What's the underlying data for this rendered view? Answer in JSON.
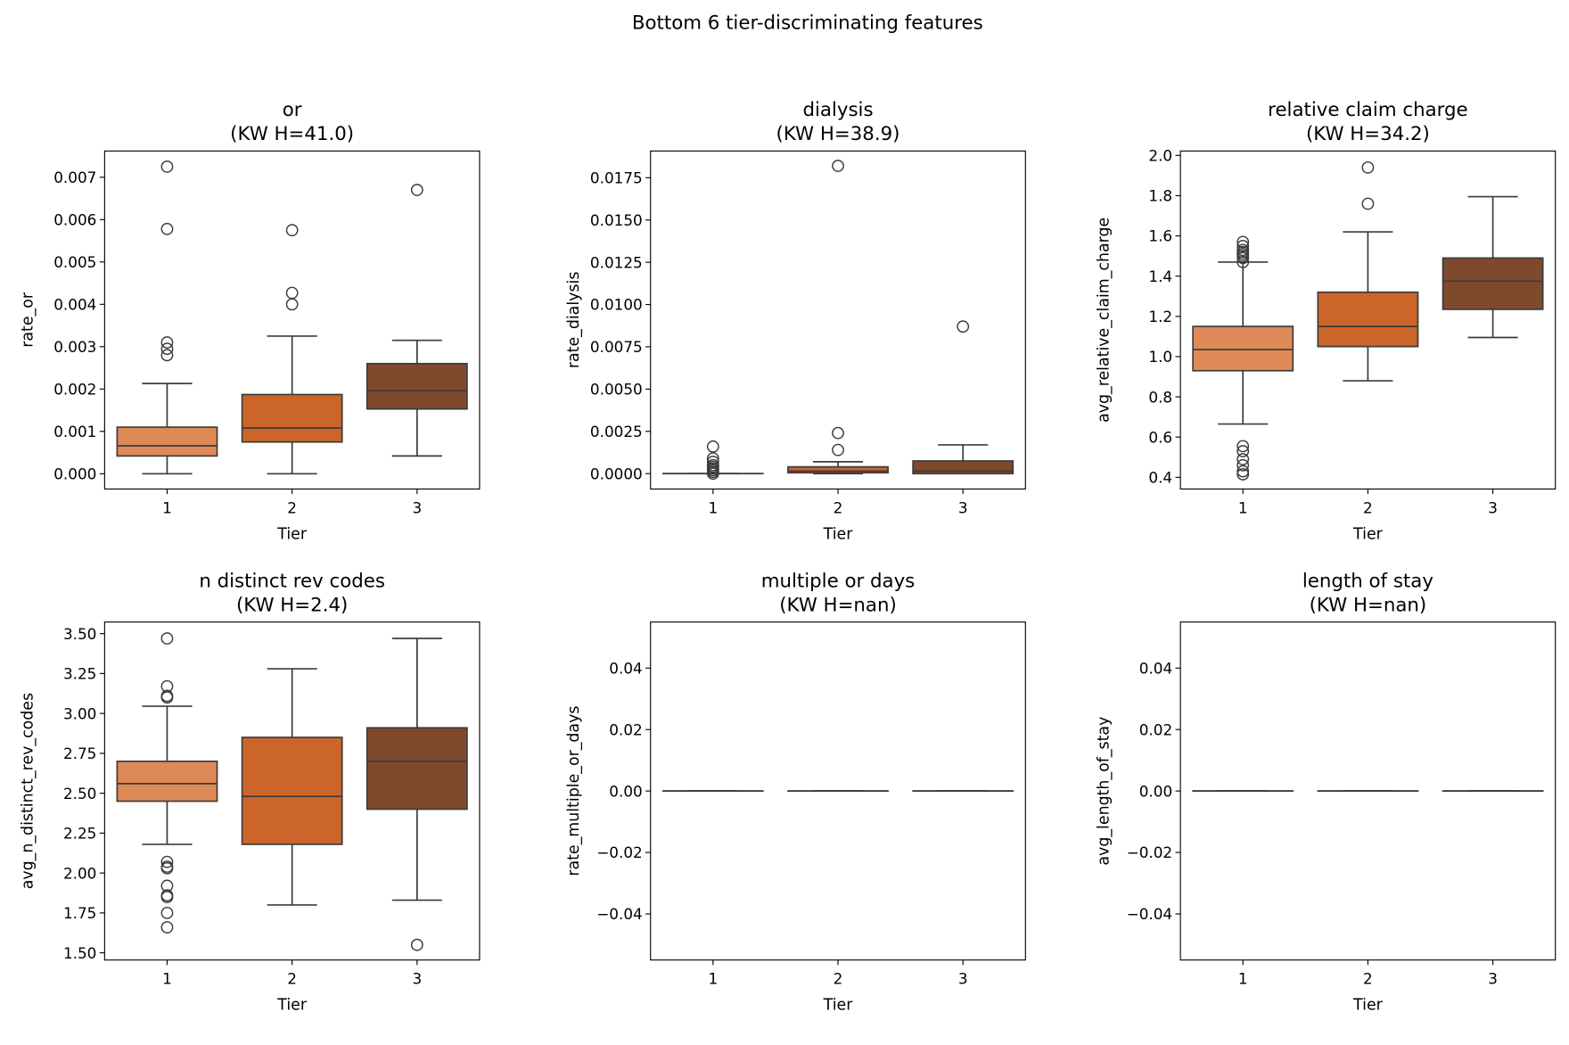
{
  "chart_data": {
    "suptitle": "Bottom 6 tier-discriminating features",
    "tier_colors": [
      "#dd8a58",
      "#cb652a",
      "#7f4a2c"
    ],
    "panels": [
      {
        "type": "box",
        "title": "or",
        "subtitle": "(KW H=41.0)",
        "xlabel": "Tier",
        "ylabel": "rate_or",
        "categories": [
          "1",
          "2",
          "3"
        ],
        "ylim": [
          -0.00036,
          0.00762
        ],
        "yticks": [
          0,
          0.001,
          0.002,
          0.003,
          0.004,
          0.005,
          0.006,
          0.007
        ],
        "ytick_labels": [
          "0.000",
          "0.001",
          "0.002",
          "0.003",
          "0.004",
          "0.005",
          "0.006",
          "0.007"
        ],
        "boxes": [
          {
            "whislo": 0,
            "q1": 0.00042,
            "med": 0.00066,
            "q3": 0.0011,
            "whishi": 0.00213,
            "fliers": [
              0.00725,
              0.00578,
              0.0031,
              0.00295,
              0.0028
            ]
          },
          {
            "whislo": 0,
            "q1": 0.00075,
            "med": 0.00108,
            "q3": 0.00187,
            "whishi": 0.00325,
            "fliers": [
              0.00575,
              0.00427,
              0.004
            ]
          },
          {
            "whislo": 0.00042,
            "q1": 0.00153,
            "med": 0.00196,
            "q3": 0.0026,
            "whishi": 0.00315,
            "fliers": [
              0.0067
            ]
          }
        ]
      },
      {
        "type": "box",
        "title": "dialysis",
        "subtitle": "(KW H=38.9)",
        "xlabel": "Tier",
        "ylabel": "rate_dialysis",
        "categories": [
          "1",
          "2",
          "3"
        ],
        "ylim": [
          -0.00091,
          0.01908
        ],
        "yticks": [
          0,
          0.0025,
          0.005,
          0.0075,
          0.01,
          0.0125,
          0.015,
          0.0175
        ],
        "ytick_labels": [
          "0.0000",
          "0.0025",
          "0.0050",
          "0.0075",
          "0.0100",
          "0.0125",
          "0.0150",
          "0.0175"
        ],
        "boxes": [
          {
            "whislo": 0,
            "q1": 0,
            "med": 0,
            "q3": 0,
            "whishi": 0,
            "fliers": [
              0.0016,
              0.0009,
              0.0007,
              0.0005,
              0.0004,
              0.0003,
              0.0002,
              0.0001,
              0
            ]
          },
          {
            "whislo": 0,
            "q1": 5e-05,
            "med": 0.00015,
            "q3": 0.0004,
            "whishi": 0.0007,
            "fliers": [
              0.0182,
              0.0024,
              0.0014
            ]
          },
          {
            "whislo": 0,
            "q1": 0,
            "med": 0.00015,
            "q3": 0.00075,
            "whishi": 0.0017,
            "fliers": [
              0.0087
            ]
          }
        ]
      },
      {
        "type": "box",
        "title": "relative claim charge",
        "subtitle": "(KW H=34.2)",
        "xlabel": "Tier",
        "ylabel": "avg_relative_claim_charge",
        "categories": [
          "1",
          "2",
          "3"
        ],
        "ylim": [
          0.342,
          2.022
        ],
        "yticks": [
          0.4,
          0.6,
          0.8,
          1.0,
          1.2,
          1.4,
          1.6,
          1.8,
          2.0
        ],
        "ytick_labels": [
          "0.4",
          "0.6",
          "0.8",
          "1.0",
          "1.2",
          "1.4",
          "1.6",
          "1.8",
          "2.0"
        ],
        "boxes": [
          {
            "whislo": 0.665,
            "q1": 0.93,
            "med": 1.035,
            "q3": 1.15,
            "whishi": 1.47,
            "fliers": [
              1.57,
              1.55,
              1.53,
              1.52,
              1.51,
              1.5,
              1.49,
              1.47,
              0.555,
              0.53,
              0.49,
              0.46,
              0.43,
              0.415
            ]
          },
          {
            "whislo": 0.88,
            "q1": 1.05,
            "med": 1.15,
            "q3": 1.32,
            "whishi": 1.62,
            "fliers": [
              1.76,
              1.94
            ]
          },
          {
            "whislo": 1.095,
            "q1": 1.235,
            "med": 1.375,
            "q3": 1.49,
            "whishi": 1.795,
            "fliers": []
          }
        ]
      },
      {
        "type": "box",
        "title": "n distinct rev codes",
        "subtitle": "(KW H=2.4)",
        "xlabel": "Tier",
        "ylabel": "avg_n_distinct_rev_codes",
        "categories": [
          "1",
          "2",
          "3"
        ],
        "ylim": [
          1.455,
          3.573
        ],
        "yticks": [
          1.5,
          1.75,
          2.0,
          2.25,
          2.5,
          2.75,
          3.0,
          3.25,
          3.5
        ],
        "ytick_labels": [
          "1.50",
          "1.75",
          "2.00",
          "2.25",
          "2.50",
          "2.75",
          "3.00",
          "3.25",
          "3.50"
        ],
        "boxes": [
          {
            "whislo": 2.18,
            "q1": 2.45,
            "med": 2.56,
            "q3": 2.7,
            "whishi": 3.045,
            "fliers": [
              3.47,
              3.17,
              3.11,
              3.1,
              2.07,
              2.04,
              2.03,
              1.92,
              1.86,
              1.85,
              1.75,
              1.66
            ]
          },
          {
            "whislo": 1.8,
            "q1": 2.18,
            "med": 2.48,
            "q3": 2.85,
            "whishi": 3.28,
            "fliers": []
          },
          {
            "whislo": 1.83,
            "q1": 2.4,
            "med": 2.7,
            "q3": 2.91,
            "whishi": 3.47,
            "fliers": [
              1.55
            ]
          }
        ]
      },
      {
        "type": "box",
        "title": "multiple or days",
        "subtitle": "(KW H=nan)",
        "xlabel": "Tier",
        "ylabel": "rate_multiple_or_days",
        "categories": [
          "1",
          "2",
          "3"
        ],
        "ylim": [
          -0.055,
          0.055
        ],
        "yticks": [
          -0.04,
          -0.02,
          0,
          0.02,
          0.04
        ],
        "ytick_labels": [
          "−0.04",
          "−0.02",
          "0.00",
          "0.02",
          "0.04"
        ],
        "boxes": [
          {
            "whislo": 0,
            "q1": 0,
            "med": 0,
            "q3": 0,
            "whishi": 0,
            "fliers": []
          },
          {
            "whislo": 0,
            "q1": 0,
            "med": 0,
            "q3": 0,
            "whishi": 0,
            "fliers": []
          },
          {
            "whislo": 0,
            "q1": 0,
            "med": 0,
            "q3": 0,
            "whishi": 0,
            "fliers": []
          }
        ]
      },
      {
        "type": "box",
        "title": "length of stay",
        "subtitle": "(KW H=nan)",
        "xlabel": "Tier",
        "ylabel": "avg_length_of_stay",
        "categories": [
          "1",
          "2",
          "3"
        ],
        "ylim": [
          -0.055,
          0.055
        ],
        "yticks": [
          -0.04,
          -0.02,
          0,
          0.02,
          0.04
        ],
        "ytick_labels": [
          "−0.04",
          "−0.02",
          "0.00",
          "0.02",
          "0.04"
        ],
        "boxes": [
          {
            "whislo": 0,
            "q1": 0,
            "med": 0,
            "q3": 0,
            "whishi": 0,
            "fliers": []
          },
          {
            "whislo": 0,
            "q1": 0,
            "med": 0,
            "q3": 0,
            "whishi": 0,
            "fliers": []
          },
          {
            "whislo": 0,
            "q1": 0,
            "med": 0,
            "q3": 0,
            "whishi": 0,
            "fliers": []
          }
        ]
      }
    ]
  }
}
